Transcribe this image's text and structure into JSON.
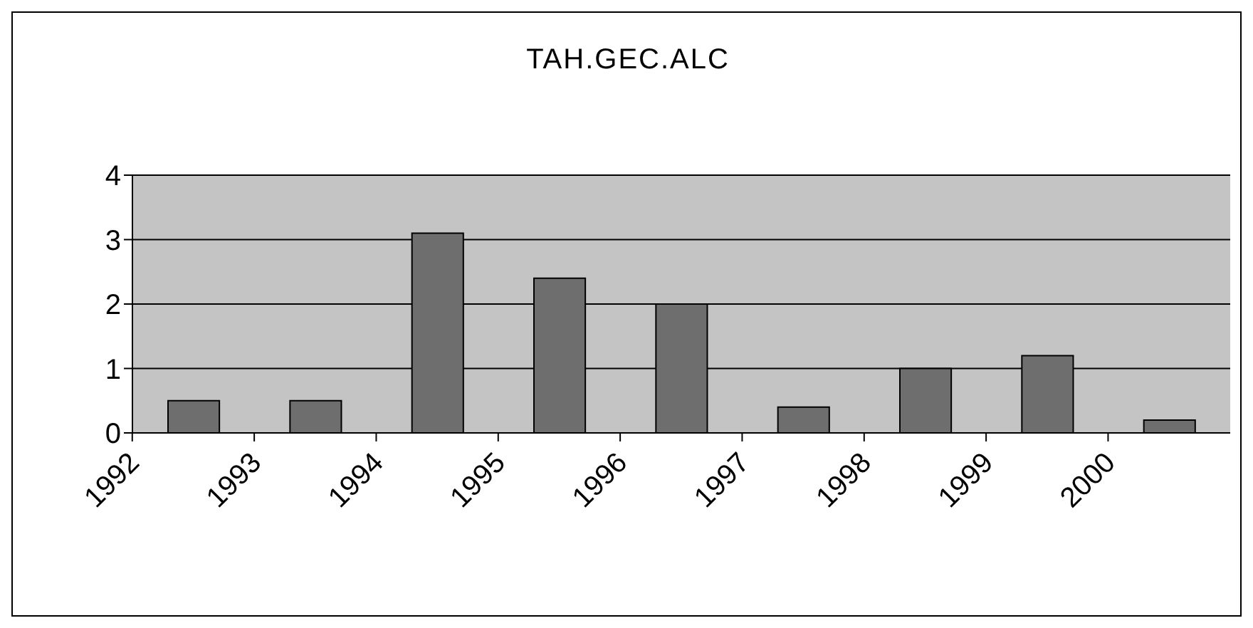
{
  "chart_data": {
    "type": "bar",
    "title": "TAH.GEC.ALC",
    "categories": [
      "1992",
      "1993",
      "1994",
      "1995",
      "1996",
      "1997",
      "1998",
      "1999",
      "2000"
    ],
    "values": [
      0.5,
      0.5,
      3.1,
      2.4,
      2.0,
      0.4,
      1.0,
      1.2,
      0.2
    ],
    "color": "#6e6e6e",
    "ylim": [
      0,
      4
    ],
    "yticks": [
      0,
      1,
      2,
      3,
      4
    ],
    "grid": "y"
  }
}
